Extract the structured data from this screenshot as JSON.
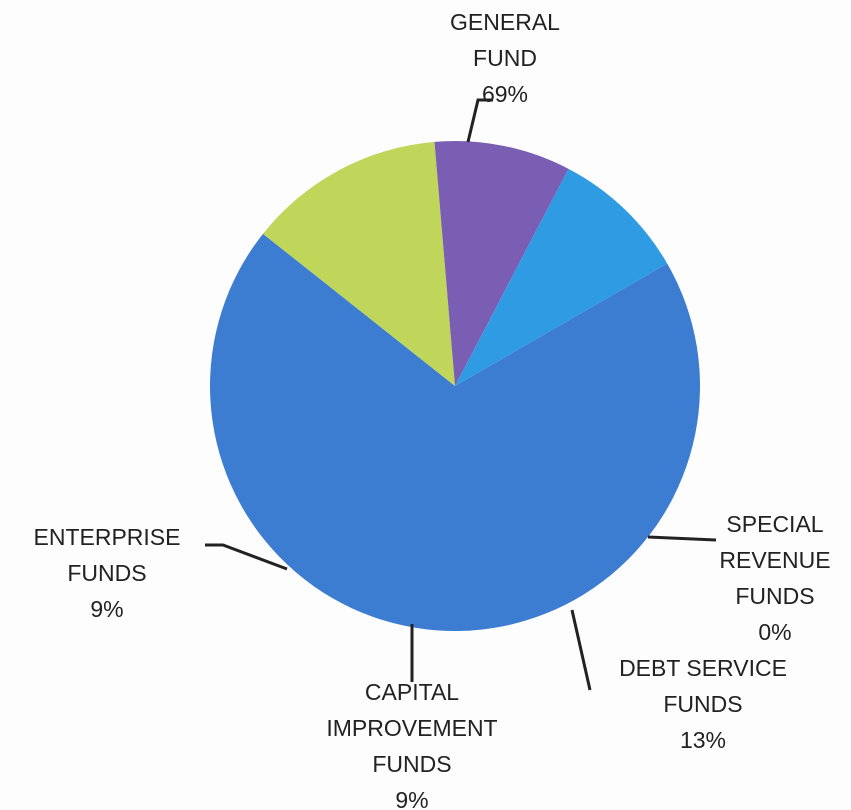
{
  "chart_data": {
    "type": "pie",
    "title": "",
    "slices": [
      {
        "label_lines": [
          "GENERAL",
          "FUND"
        ],
        "value": 69,
        "value_label": "69%",
        "color": "#3c7dd1"
      },
      {
        "label_lines": [
          "SPECIAL",
          "REVENUE",
          "FUNDS"
        ],
        "value": 0,
        "value_label": "0%",
        "color": "#e8e8e8"
      },
      {
        "label_lines": [
          "DEBT SERVICE",
          "FUNDS"
        ],
        "value": 13,
        "value_label": "13%",
        "color": "#bfd65a"
      },
      {
        "label_lines": [
          "CAPITAL",
          "IMPROVEMENT",
          "FUNDS"
        ],
        "value": 9,
        "value_label": "9%",
        "color": "#7a5eb4"
      },
      {
        "label_lines": [
          "ENTERPRISE",
          "FUNDS"
        ],
        "value": 9,
        "value_label": "9%",
        "color": "#2f9be2"
      }
    ]
  }
}
